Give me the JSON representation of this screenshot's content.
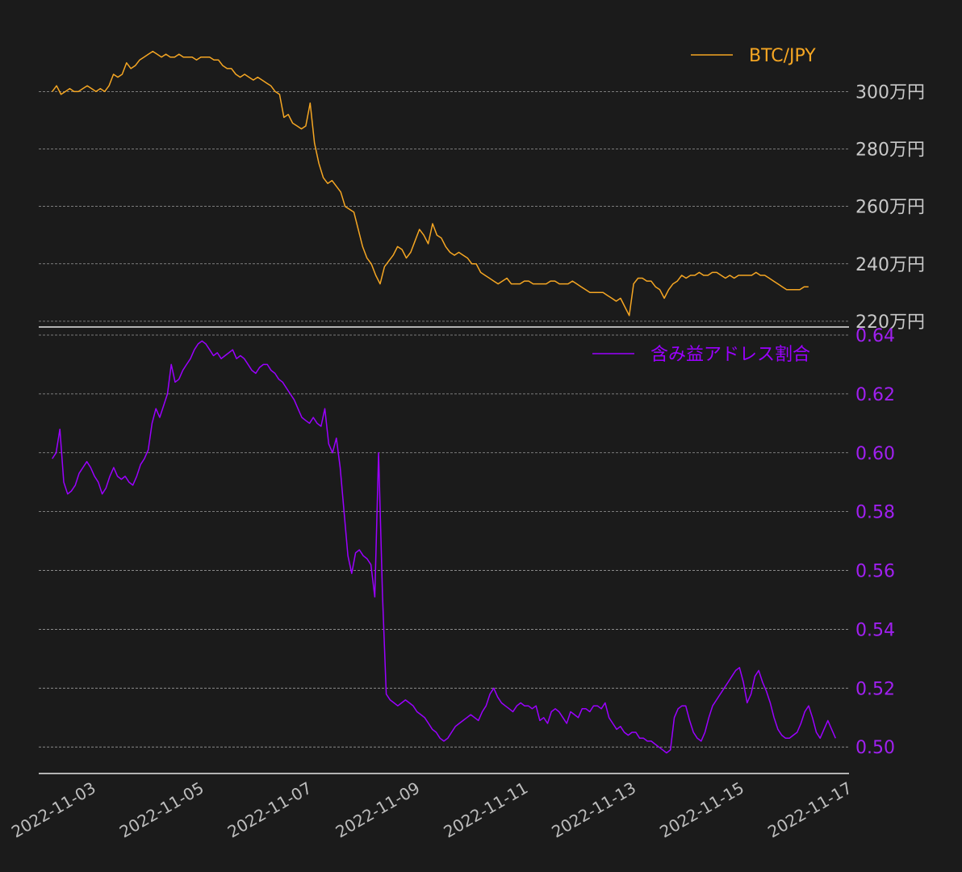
{
  "chart_data": [
    {
      "type": "line",
      "panel": "top",
      "legend": "top-right",
      "grid": true,
      "colors": {
        "line": "#f5a623",
        "tick_text": "#c8c8c8"
      },
      "series": [
        {
          "name": "BTC/JPY",
          "x_start": "2022-11-02T12:00",
          "x_end": "2022-11-16T12:00",
          "unit": "万円",
          "values": [
            300,
            302,
            299,
            300,
            301,
            300,
            300,
            301,
            302,
            301,
            300,
            301,
            300,
            302,
            306,
            305,
            306,
            310,
            308,
            309,
            311,
            312,
            313,
            314,
            313,
            312,
            313,
            312,
            312,
            313,
            312,
            312,
            312,
            311,
            312,
            312,
            312,
            311,
            311,
            309,
            308,
            308,
            306,
            305,
            306,
            305,
            304,
            305,
            304,
            303,
            302,
            300,
            299,
            291,
            292,
            289,
            288,
            287,
            288,
            296,
            282,
            275,
            270,
            268,
            269,
            267,
            265,
            260,
            259,
            258,
            252,
            246,
            242,
            240,
            236,
            233,
            239,
            241,
            243,
            246,
            245,
            242,
            244,
            248,
            252,
            250,
            247,
            254,
            250,
            249,
            246,
            244,
            243,
            244,
            243,
            242,
            240,
            240,
            237,
            236,
            235,
            234,
            233,
            234,
            235,
            233,
            233,
            233,
            234,
            234,
            233,
            233,
            233,
            233,
            234,
            234,
            233,
            233,
            233,
            234,
            233,
            232,
            231,
            230,
            230,
            230,
            230,
            229,
            228,
            227,
            228,
            225,
            222,
            233,
            235,
            235,
            234,
            234,
            232,
            231,
            228,
            231,
            233,
            234,
            236,
            235,
            236,
            236,
            237,
            236,
            236,
            237,
            237,
            236,
            235,
            236,
            235,
            236,
            236,
            236,
            236,
            237,
            236,
            236,
            235,
            234,
            233,
            232,
            231,
            231,
            231,
            231,
            232,
            232
          ]
        }
      ],
      "yticks": [
        "300万円",
        "280万円",
        "260万円",
        "240万円",
        "220万円"
      ],
      "ytick_values": [
        300,
        280,
        260,
        240,
        220
      ],
      "ylim": [
        218,
        315
      ]
    },
    {
      "type": "line",
      "panel": "bottom",
      "legend": "top-right",
      "grid": true,
      "colors": {
        "line": "#9b00ff",
        "tick_text": "#a020f0"
      },
      "series": [
        {
          "name": "含み益アドレス割合",
          "x_start": "2022-11-02T12:00",
          "x_end": "2022-11-17T00:00",
          "values": [
            0.598,
            0.6,
            0.608,
            0.59,
            0.586,
            0.587,
            0.589,
            0.593,
            0.595,
            0.597,
            0.595,
            0.592,
            0.59,
            0.586,
            0.588,
            0.592,
            0.595,
            0.592,
            0.591,
            0.592,
            0.59,
            0.589,
            0.592,
            0.596,
            0.598,
            0.601,
            0.61,
            0.615,
            0.612,
            0.616,
            0.62,
            0.63,
            0.624,
            0.625,
            0.628,
            0.63,
            0.632,
            0.635,
            0.637,
            0.638,
            0.637,
            0.635,
            0.633,
            0.634,
            0.632,
            0.633,
            0.634,
            0.635,
            0.632,
            0.633,
            0.632,
            0.63,
            0.628,
            0.627,
            0.629,
            0.63,
            0.63,
            0.628,
            0.627,
            0.625,
            0.624,
            0.622,
            0.62,
            0.618,
            0.615,
            0.612,
            0.611,
            0.61,
            0.612,
            0.61,
            0.609,
            0.615,
            0.603,
            0.6,
            0.605,
            0.595,
            0.58,
            0.565,
            0.559,
            0.566,
            0.567,
            0.565,
            0.564,
            0.562,
            0.551,
            0.6,
            0.552,
            0.518,
            0.516,
            0.515,
            0.514,
            0.515,
            0.516,
            0.515,
            0.514,
            0.512,
            0.511,
            0.51,
            0.508,
            0.506,
            0.505,
            0.503,
            0.502,
            0.503,
            0.505,
            0.507,
            0.508,
            0.509,
            0.51,
            0.511,
            0.51,
            0.509,
            0.512,
            0.514,
            0.518,
            0.52,
            0.517,
            0.515,
            0.514,
            0.513,
            0.512,
            0.514,
            0.515,
            0.514,
            0.514,
            0.513,
            0.514,
            0.509,
            0.51,
            0.508,
            0.512,
            0.513,
            0.512,
            0.51,
            0.508,
            0.512,
            0.511,
            0.51,
            0.513,
            0.513,
            0.512,
            0.514,
            0.514,
            0.513,
            0.515,
            0.51,
            0.508,
            0.506,
            0.507,
            0.505,
            0.504,
            0.505,
            0.505,
            0.503,
            0.503,
            0.502,
            0.502,
            0.501,
            0.5,
            0.499,
            0.498,
            0.499,
            0.51,
            0.513,
            0.514,
            0.514,
            0.509,
            0.505,
            0.503,
            0.502,
            0.505,
            0.51,
            0.514,
            0.516,
            0.518,
            0.52,
            0.522,
            0.524,
            0.526,
            0.527,
            0.522,
            0.515,
            0.518,
            0.524,
            0.526,
            0.522,
            0.519,
            0.515,
            0.51,
            0.506,
            0.504,
            0.503,
            0.503,
            0.504,
            0.505,
            0.508,
            0.512,
            0.514,
            0.51,
            0.505,
            0.503,
            0.506,
            0.509,
            0.506,
            0.503
          ]
        }
      ],
      "yticks": [
        "0.64",
        "0.62",
        "0.60",
        "0.58",
        "0.56",
        "0.54",
        "0.52",
        "0.50"
      ],
      "ytick_values": [
        0.64,
        0.62,
        0.6,
        0.58,
        0.56,
        0.54,
        0.52,
        0.5
      ],
      "ylim": [
        0.491,
        0.64
      ]
    }
  ],
  "x_axis": {
    "ticks": [
      "2022-11-03",
      "2022-11-05",
      "2022-11-07",
      "2022-11-09",
      "2022-11-11",
      "2022-11-13",
      "2022-11-15",
      "2022-11-17"
    ],
    "tick_dates": [
      "2022-11-03",
      "2022-11-05",
      "2022-11-07",
      "2022-11-09",
      "2022-11-11",
      "2022-11-13",
      "2022-11-15",
      "2022-11-17"
    ],
    "range": [
      "2022-11-02T06:00",
      "2022-11-17T06:00"
    ]
  }
}
